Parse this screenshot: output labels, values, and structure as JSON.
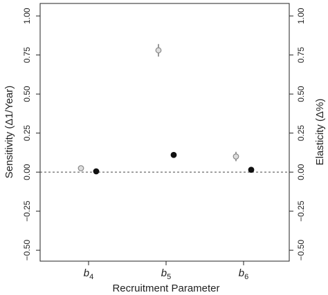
{
  "chart_data": {
    "type": "scatter",
    "categories": [
      {
        "symbol": "b",
        "subscript": "4"
      },
      {
        "symbol": "b",
        "subscript": "5"
      },
      {
        "symbol": "b",
        "subscript": "6"
      }
    ],
    "x_label": "Recruitment Parameter",
    "y_label": "Sensitivity (Δ1/Year)",
    "y2_label": "Elasticity (Δ%)",
    "series": [
      {
        "name": "Sensitivity",
        "color": "#888888",
        "marker": "open",
        "values": [
          0.025,
          0.78,
          0.1
        ],
        "errors": [
          0.015,
          0.04,
          0.03
        ]
      },
      {
        "name": "Elasticity",
        "color": "#111111",
        "marker": "filled",
        "axis": "y2",
        "values": [
          0.005,
          0.11,
          0.015
        ]
      }
    ],
    "reference_line": 0,
    "ylim": [
      -0.57,
      1.08
    ],
    "yticks": [
      {
        "value": -0.5,
        "label": "−0.50"
      },
      {
        "value": -0.25,
        "label": "−0.25"
      },
      {
        "value": 0,
        "label": "0.00"
      },
      {
        "value": 0.25,
        "label": "0.25"
      },
      {
        "value": 0.5,
        "label": "0.50"
      },
      {
        "value": 0.75,
        "label": "0.75"
      },
      {
        "value": 1,
        "label": "1.00"
      }
    ],
    "y2lim": [
      -0.57,
      1.08
    ],
    "y2ticks": [
      {
        "value": -0.5,
        "label": "−0.50"
      },
      {
        "value": -0.25,
        "label": "−0.25"
      },
      {
        "value": 0,
        "label": "0.00"
      },
      {
        "value": 0.25,
        "label": "0.25"
      },
      {
        "value": 0.5,
        "label": "0.50"
      },
      {
        "value": 0.75,
        "label": "0.75"
      },
      {
        "value": 1,
        "label": "1.00"
      }
    ]
  }
}
